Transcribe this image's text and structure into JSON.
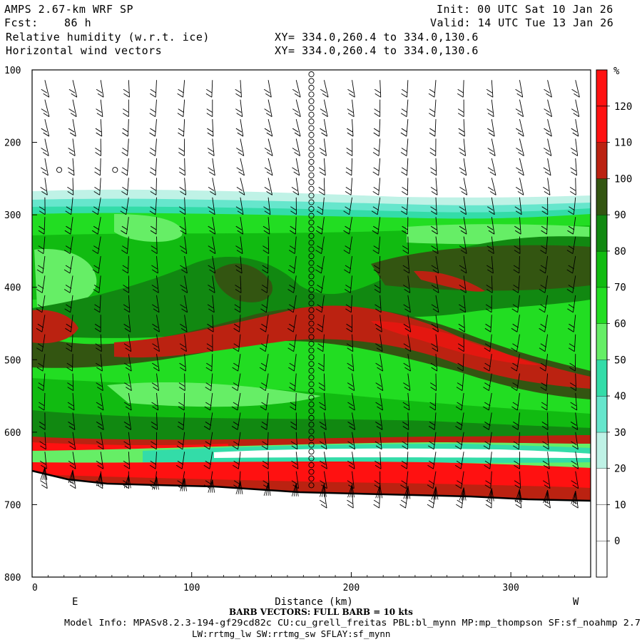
{
  "header": {
    "model_title": "AMPS 2.67-km WRF SP",
    "init_time": "Init: 00 UTC Sat 10 Jan 26",
    "forecast_label": "Fcst:",
    "forecast_hours": "86 h",
    "valid_time": "Valid: 14 UTC Tue 13 Jan 26",
    "field1": "Relative humidity (w.r.t. ice)",
    "field1_xy": "XY= 334.0,260.4 to 334.0,130.6",
    "field2": "Horizontal wind vectors",
    "field2_xy": "XY= 334.0,260.4 to 334.0,130.6"
  },
  "chart_data": {
    "type": "heatmap",
    "xlabel": "Distance (km)",
    "ylabel": "",
    "xlim": [
      0,
      350
    ],
    "ylim": [
      800,
      100
    ],
    "x_ticks": [
      0,
      100,
      200,
      300
    ],
    "y_ticks": [
      100,
      200,
      300,
      400,
      500,
      600,
      700,
      800
    ],
    "x_end_labels": {
      "left": "E",
      "right": "W"
    },
    "colorbar": {
      "unit": "%",
      "levels": [
        0,
        10,
        20,
        30,
        40,
        50,
        60,
        70,
        80,
        90,
        100,
        110,
        120
      ],
      "colors": [
        "#ffffff",
        "#ffffff",
        "#ffffff",
        "#bff2e6",
        "#66e6cc",
        "#33dca8",
        "#66ee66",
        "#22dd22",
        "#11bb11",
        "#118811",
        "#335511",
        "#bb2211",
        "#ff1111"
      ]
    },
    "terrain_surface_hpa": [
      [
        0,
        660
      ],
      [
        50,
        672
      ],
      [
        100,
        678
      ],
      [
        150,
        684
      ],
      [
        200,
        686
      ],
      [
        250,
        689
      ],
      [
        300,
        692
      ],
      [
        350,
        696
      ]
    ],
    "rh_layers": [
      {
        "top_hpa": 100,
        "bottom_hpa": 270,
        "rh": "< 30"
      },
      {
        "top_hpa": 270,
        "bottom_hpa": 300,
        "rh": "30-70"
      },
      {
        "top_hpa": 300,
        "bottom_hpa": 440,
        "rh": "70-100"
      },
      {
        "top_hpa": 440,
        "bottom_hpa": 520,
        "rh": "100-120"
      },
      {
        "top_hpa": 520,
        "bottom_hpa": 610,
        "rh": "70-100"
      },
      {
        "top_hpa": 610,
        "bottom_hpa": 640,
        "rh": "100-120"
      },
      {
        "top_hpa": 640,
        "bottom_hpa": 655,
        "rh": "30-70"
      },
      {
        "top_hpa": 655,
        "bottom_hpa": 700,
        "rh": "110-130"
      }
    ],
    "barb_vectors": "FULL BARB = 10 kts"
  },
  "footer": {
    "barb_note": "BARB VECTORS:  FULL BARB = 10 kts",
    "model_info": "Model Info: MPASv8.2.3-194-gf29cd82c CU:cu_grell_freitas PBL:bl_mynn MP:mp_thompson SF:sf_noahmp 2.7",
    "model_info2": "LW:rrtmg_lw SW:rrtmg_sw SFLAY:sf_mynn"
  }
}
